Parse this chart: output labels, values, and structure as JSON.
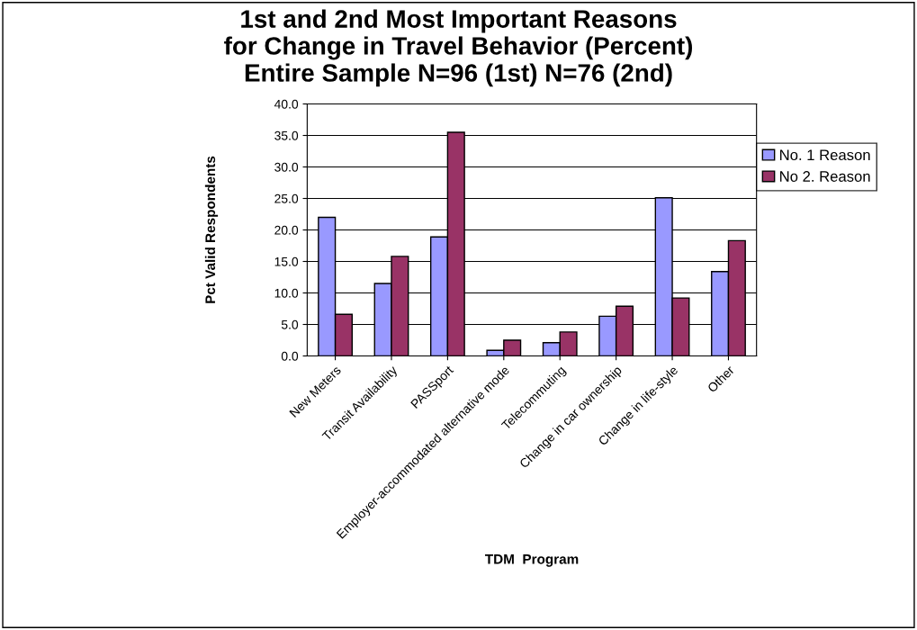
{
  "chart_data": {
    "type": "bar",
    "title": "1st and 2nd Most Important Reasons\nfor Change in Travel Behavior (Percent)\nEntire Sample N=96 (1st) N=76 (2nd)",
    "xlabel": "TDM  Program",
    "ylabel": "Pct Valid Respondents",
    "categories": [
      "New Meters",
      "Transit Availability",
      "PASSport",
      "Employer-accommodated alternative mode",
      "Telecommuting",
      "Change in car ownership",
      "Change in life-style",
      "Other"
    ],
    "series": [
      {
        "name": "No. 1 Reason",
        "color": "#9999ff",
        "values": [
          22.0,
          11.5,
          18.9,
          0.9,
          2.1,
          6.3,
          25.1,
          13.4
        ]
      },
      {
        "name": "No 2. Reason",
        "color": "#993366",
        "values": [
          6.6,
          15.8,
          35.5,
          2.5,
          3.8,
          7.9,
          9.2,
          18.3
        ]
      }
    ],
    "ylim": [
      0,
      40
    ],
    "yticks": [
      {
        "value": 0,
        "label": "0.0"
      },
      {
        "value": 5,
        "label": "5.0"
      },
      {
        "value": 10,
        "label": "10.0"
      },
      {
        "value": 15,
        "label": "15.0"
      },
      {
        "value": 20,
        "label": "20.0"
      },
      {
        "value": 25,
        "label": "25.0"
      },
      {
        "value": 30,
        "label": "30.0"
      },
      {
        "value": 35,
        "label": "35.0"
      },
      {
        "value": 40,
        "label": "40.0"
      }
    ],
    "grid": "y",
    "legend": "right"
  }
}
